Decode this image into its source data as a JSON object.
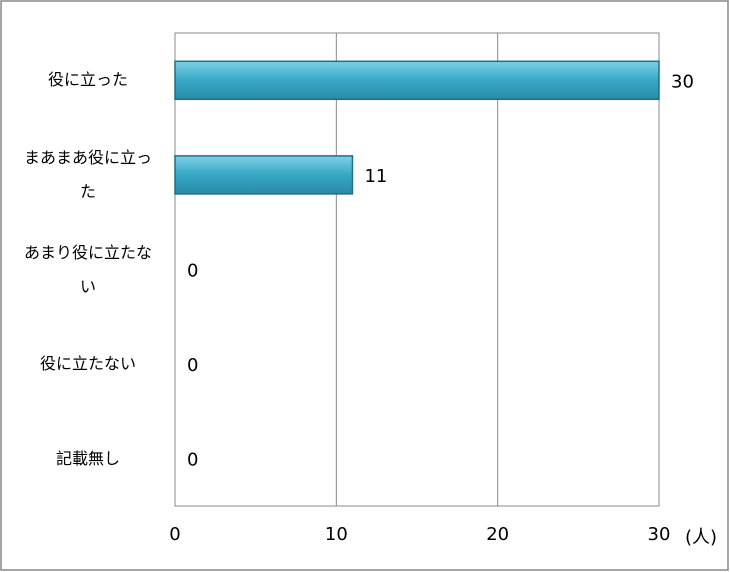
{
  "chart_data": {
    "type": "bar",
    "orientation": "horizontal",
    "categories": [
      "役に立った",
      "まあまあ役に立った",
      "あまり役に立たない",
      "役に立たない",
      "記載無し"
    ],
    "values": [
      30,
      11,
      0,
      0,
      0
    ],
    "color": "#4bacc6",
    "xlim": [
      0,
      30
    ],
    "xticks": [
      0,
      10,
      20,
      30
    ],
    "x_unit": "(人)",
    "grid": true
  }
}
